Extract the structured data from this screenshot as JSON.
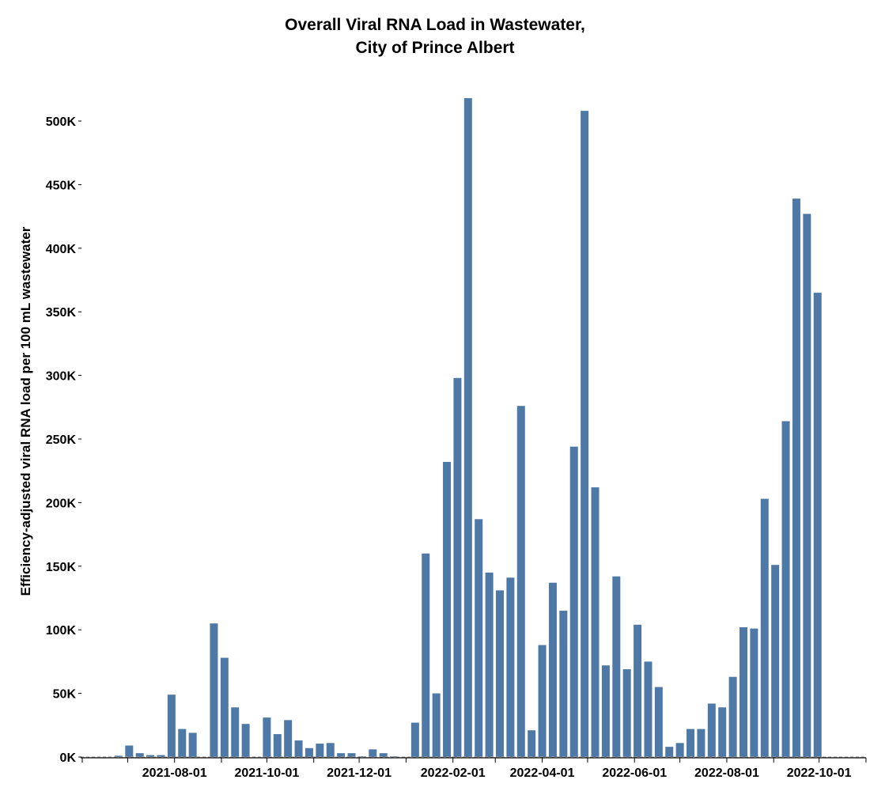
{
  "chart_data": {
    "type": "bar",
    "title": [
      "Overall Viral RNA Load in Wastewater,",
      "City of Prince Albert"
    ],
    "xlabel": "",
    "ylabel": "Efficiency-adjusted viral RNA load per 100 mL wastewater",
    "ylim": [
      0,
      530000
    ],
    "yticks": [
      0,
      50000,
      100000,
      150000,
      200000,
      250000,
      300000,
      350000,
      400000,
      450000,
      500000
    ],
    "ytick_labels": [
      "0K",
      "50K",
      "100K",
      "150K",
      "200K",
      "250K",
      "300K",
      "350K",
      "400K",
      "450K",
      "500K"
    ],
    "xlim": [
      "2021-06-01",
      "2022-10-31"
    ],
    "xtick_labels": [
      "2021-08-01",
      "2021-10-01",
      "2021-12-01",
      "2022-02-01",
      "2022-04-01",
      "2022-06-01",
      "2022-08-01",
      "2022-10-01"
    ],
    "bar_color": "#4e79a7",
    "grid": false,
    "x": [
      "2021-06-25",
      "2021-07-02",
      "2021-07-09",
      "2021-07-16",
      "2021-07-23",
      "2021-07-30",
      "2021-08-06",
      "2021-08-13",
      "2021-08-27",
      "2021-09-03",
      "2021-09-10",
      "2021-09-17",
      "2021-10-01",
      "2021-10-08",
      "2021-10-15",
      "2021-10-22",
      "2021-10-29",
      "2021-11-05",
      "2021-11-12",
      "2021-11-19",
      "2021-11-26",
      "2021-12-03",
      "2021-12-10",
      "2021-12-17",
      "2021-12-24",
      "2022-01-07",
      "2022-01-14",
      "2022-01-21",
      "2022-01-28",
      "2022-02-04",
      "2022-02-11",
      "2022-02-18",
      "2022-02-25",
      "2022-03-04",
      "2022-03-11",
      "2022-03-18",
      "2022-03-25",
      "2022-04-01",
      "2022-04-08",
      "2022-04-15",
      "2022-04-22",
      "2022-04-29",
      "2022-05-06",
      "2022-05-13",
      "2022-05-20",
      "2022-05-27",
      "2022-06-03",
      "2022-06-10",
      "2022-06-17",
      "2022-06-24",
      "2022-07-01",
      "2022-07-08",
      "2022-07-15",
      "2022-07-22",
      "2022-07-29",
      "2022-08-05",
      "2022-08-12",
      "2022-08-19",
      "2022-08-26",
      "2022-09-02",
      "2022-09-09",
      "2022-09-16",
      "2022-09-23",
      "2022-09-30"
    ],
    "values": [
      1000,
      9000,
      3000,
      1500,
      1500,
      49000,
      22000,
      19000,
      105000,
      78000,
      39000,
      26000,
      31000,
      18000,
      29000,
      13000,
      7000,
      10500,
      11000,
      3000,
      3000,
      500,
      6000,
      3000,
      500,
      27000,
      160000,
      50000,
      232000,
      298000,
      518000,
      187000,
      145000,
      131000,
      141000,
      276000,
      21000,
      88000,
      137000,
      115000,
      244000,
      508000,
      212000,
      72000,
      142000,
      69000,
      104000,
      75000,
      55000,
      8000,
      11000,
      22000,
      22000,
      42000,
      39000,
      63000,
      102000,
      101000,
      203000,
      151000,
      264000,
      439000,
      427000,
      365000
    ]
  }
}
